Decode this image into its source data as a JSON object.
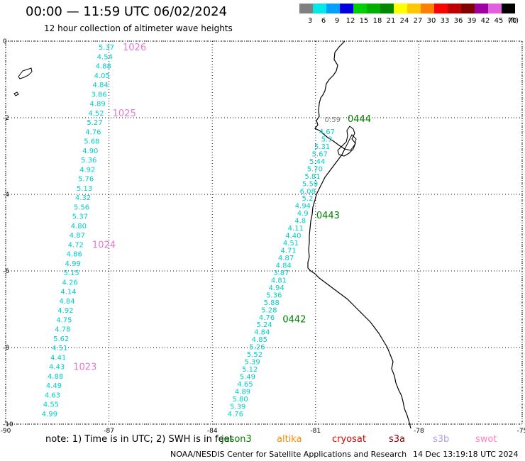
{
  "header": {
    "title": "00:00 — 11:59 UTC 06/02/2024",
    "subtitle": "12 hour collection of altimeter wave heights"
  },
  "legend": {
    "unit": "(ft)",
    "bins": [
      {
        "label": "3",
        "color": "#808080"
      },
      {
        "label": "6",
        "color": "#00e8e8"
      },
      {
        "label": "9",
        "color": "#00a0ff"
      },
      {
        "label": "12",
        "color": "#0000e0"
      },
      {
        "label": "15",
        "color": "#00d000"
      },
      {
        "label": "18",
        "color": "#00b000"
      },
      {
        "label": "21",
        "color": "#008800"
      },
      {
        "label": "24",
        "color": "#ffff00"
      },
      {
        "label": "27",
        "color": "#ffc800"
      },
      {
        "label": "30",
        "color": "#ff8000"
      },
      {
        "label": "33",
        "color": "#ff0000"
      },
      {
        "label": "36",
        "color": "#c00000"
      },
      {
        "label": "39",
        "color": "#800000"
      },
      {
        "label": "42",
        "color": "#a000a0"
      },
      {
        "label": "45",
        "color": "#e060e0"
      },
      {
        "label": "70",
        "color": "#000000"
      }
    ]
  },
  "map": {
    "lon_ticks": [
      "-90",
      "-87",
      "-84",
      "-81",
      "-78",
      "-75"
    ],
    "lat_ticks": [
      "0",
      "-2",
      "-4",
      "-6",
      "-8",
      "-10"
    ],
    "lon_range": [
      -90,
      -75
    ],
    "lat_range": [
      -10,
      0
    ],
    "pink_color": "#e878d0",
    "cyan_color": "#00cccc",
    "green_color": "#008000",
    "track_west": {
      "values": [
        "5.37",
        "4.54",
        "4.88",
        "4.05",
        "4.84",
        "3.86",
        "4.89",
        "4.52",
        "5.27",
        "4.76",
        "5.68",
        "4.90",
        "5.36",
        "4.92",
        "5.76",
        "5.13",
        "4.32",
        "5.56",
        "5.37",
        "4.80",
        "4.87",
        "4.72",
        "4.86",
        "4.99",
        "5.15",
        "4.26",
        "4.14",
        "4.84",
        "4.92",
        "4.75",
        "4.78",
        "5.62",
        "4.51",
        "4.41",
        "4.43",
        "4.88",
        "4.49",
        "4.63",
        "4.55",
        "4.99"
      ],
      "time_labels": [
        {
          "text": "1026",
          "row": 0
        },
        {
          "text": "1025",
          "row": 7
        },
        {
          "text": "1024",
          "row": 21
        },
        {
          "text": "1023",
          "row": 34
        }
      ]
    },
    "track_east": {
      "first_label": "0:59",
      "values": [
        "4.67",
        "5.3",
        "5.31",
        "5.67",
        "5.44",
        "5.70",
        "5.81",
        "5.59",
        "6.08",
        "5.2",
        "4.94",
        "4.9",
        "4.8",
        "4.11",
        "4.40",
        "4.51",
        "4.71",
        "4.87",
        "4.84",
        "3.87",
        "4.81",
        "4.94",
        "5.36",
        "5.88",
        "5.28",
        "4.76",
        "5.24",
        "4.84",
        "4.85",
        "5.26",
        "5.52",
        "5.39",
        "5.12",
        "5.49",
        "4.65",
        "4.89",
        "5.80",
        "5.39",
        "4.76"
      ],
      "time_labels": [
        {
          "text": "0444",
          "row": 0
        },
        {
          "text": "0443",
          "row": 13
        },
        {
          "text": "0442",
          "row": 27
        }
      ]
    }
  },
  "footer": {
    "note": "note: 1) Time is in UTC; 2) SWH is in feet",
    "missions": [
      {
        "label": "jason3",
        "color": "#008000"
      },
      {
        "label": "altika",
        "color": "#ff8c00"
      },
      {
        "label": "cryosat",
        "color": "#e00000"
      },
      {
        "label": "s3a",
        "color": "#900000"
      },
      {
        "label": "s3b",
        "color": "#b0a0e0"
      },
      {
        "label": "swot",
        "color": "#ff80c0"
      }
    ],
    "credit": "NOAA/NESDIS Center for Satellite Applications and Research",
    "timestamp": "14 Dec 13:19:18 UTC 2024"
  }
}
